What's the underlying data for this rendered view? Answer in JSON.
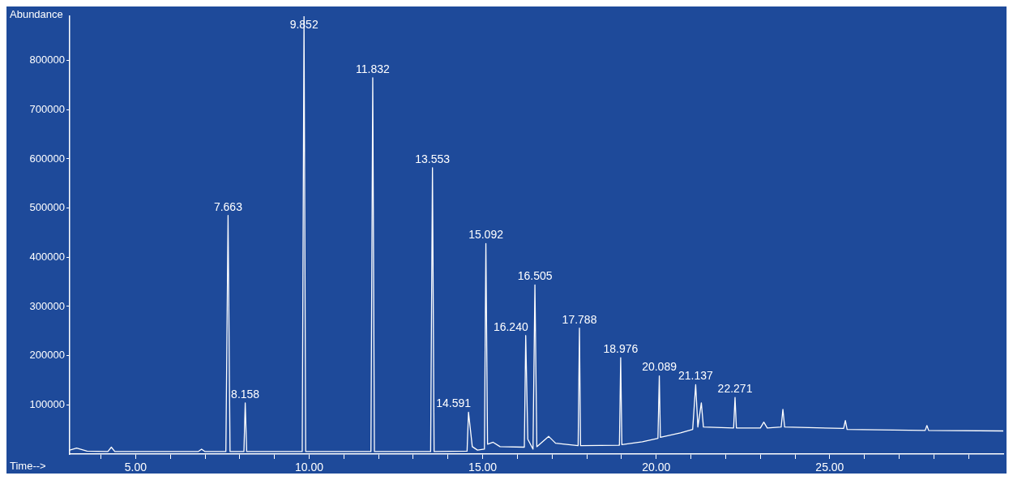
{
  "chart_data": {
    "type": "line",
    "xlabel": "Time-->",
    "ylabel": "Abundance",
    "xlim": [
      3.1,
      30.0
    ],
    "ylim": [
      0,
      890000
    ],
    "xticks": [
      {
        "value": 4,
        "label": null
      },
      {
        "value": 5,
        "label": "5.00"
      },
      {
        "value": 6,
        "label": null
      },
      {
        "value": 7,
        "label": null
      },
      {
        "value": 8,
        "label": null
      },
      {
        "value": 9,
        "label": null
      },
      {
        "value": 10,
        "label": "10.00"
      },
      {
        "value": 11,
        "label": null
      },
      {
        "value": 12,
        "label": null
      },
      {
        "value": 13,
        "label": null
      },
      {
        "value": 14,
        "label": null
      },
      {
        "value": 15,
        "label": "15.00"
      },
      {
        "value": 16,
        "label": null
      },
      {
        "value": 17,
        "label": null
      },
      {
        "value": 18,
        "label": null
      },
      {
        "value": 19,
        "label": null
      },
      {
        "value": 20,
        "label": "20.00"
      },
      {
        "value": 21,
        "label": null
      },
      {
        "value": 22,
        "label": null
      },
      {
        "value": 23,
        "label": null
      },
      {
        "value": 24,
        "label": null
      },
      {
        "value": 25,
        "label": "25.00"
      },
      {
        "value": 26,
        "label": null
      },
      {
        "value": 27,
        "label": null
      },
      {
        "value": 28,
        "label": null
      },
      {
        "value": 29,
        "label": null
      }
    ],
    "yticks": [
      100000,
      200000,
      300000,
      400000,
      500000,
      600000,
      700000,
      800000
    ],
    "grid": false,
    "legend": false,
    "marker": "none",
    "line_style": "solid",
    "series": [
      {
        "color": "#ffffff",
        "x": [
          3.1,
          3.3,
          3.6,
          4.2,
          4.3,
          4.4,
          5,
          6.8,
          6.9,
          7.0,
          7.6,
          7.663,
          7.72,
          8.12,
          8.158,
          8.2,
          9.8,
          9.852,
          9.9,
          11.78,
          11.832,
          11.88,
          13.5,
          13.553,
          13.6,
          14.55,
          14.591,
          14.7,
          14.85,
          15.05,
          15.092,
          15.14,
          15.3,
          15.5,
          16.2,
          16.24,
          16.3,
          16.45,
          16.505,
          16.56,
          16.9,
          17.1,
          17.75,
          17.788,
          17.82,
          18.94,
          18.976,
          19.01,
          19.6,
          20.05,
          20.089,
          20.12,
          20.7,
          21.05,
          21.137,
          21.2,
          21.3,
          21.36,
          22.23,
          22.271,
          22.31,
          23.0,
          23.1,
          23.2,
          23.6,
          23.65,
          23.7,
          25.4,
          25.45,
          25.5,
          27.75,
          27.8,
          27.85,
          30.0
        ],
        "values": [
          8000,
          12000,
          6000,
          5000,
          14000,
          5000,
          5000,
          5000,
          10000,
          5000,
          5000,
          485000,
          5000,
          5000,
          104000,
          5000,
          5000,
          890000,
          5000,
          5000,
          765000,
          5000,
          5000,
          582000,
          5000,
          6000,
          85000,
          15000,
          8000,
          10000,
          428000,
          20000,
          24000,
          15000,
          14000,
          241000,
          30000,
          10000,
          344000,
          15000,
          36000,
          22000,
          17000,
          256000,
          17000,
          18000,
          196000,
          19000,
          25000,
          32000,
          159000,
          34000,
          43000,
          50000,
          141000,
          55000,
          104000,
          55000,
          53000,
          115000,
          53000,
          53000,
          65000,
          53000,
          55000,
          91000,
          55000,
          52000,
          68000,
          50000,
          48000,
          58000,
          48000,
          47000
        ]
      }
    ],
    "annotations": [
      {
        "text": "7.663",
        "x": 7.663,
        "y": 485000
      },
      {
        "text": "8.158",
        "x": 8.158,
        "y": 104000
      },
      {
        "text": "9.852",
        "x": 9.852,
        "y": 890000
      },
      {
        "text": "11.832",
        "x": 11.832,
        "y": 765000
      },
      {
        "text": "13.553",
        "x": 13.553,
        "y": 582000
      },
      {
        "text": "14.591",
        "x": 14.591,
        "y": 85000
      },
      {
        "text": "15.092",
        "x": 15.092,
        "y": 428000
      },
      {
        "text": "16.240",
        "x": 16.24,
        "y": 241000
      },
      {
        "text": "16.505",
        "x": 16.505,
        "y": 344000
      },
      {
        "text": "17.788",
        "x": 17.788,
        "y": 256000
      },
      {
        "text": "18.976",
        "x": 18.976,
        "y": 196000
      },
      {
        "text": "20.089",
        "x": 20.089,
        "y": 159000
      },
      {
        "text": "21.137",
        "x": 21.137,
        "y": 141000
      },
      {
        "text": "22.271",
        "x": 22.271,
        "y": 115000
      }
    ]
  }
}
